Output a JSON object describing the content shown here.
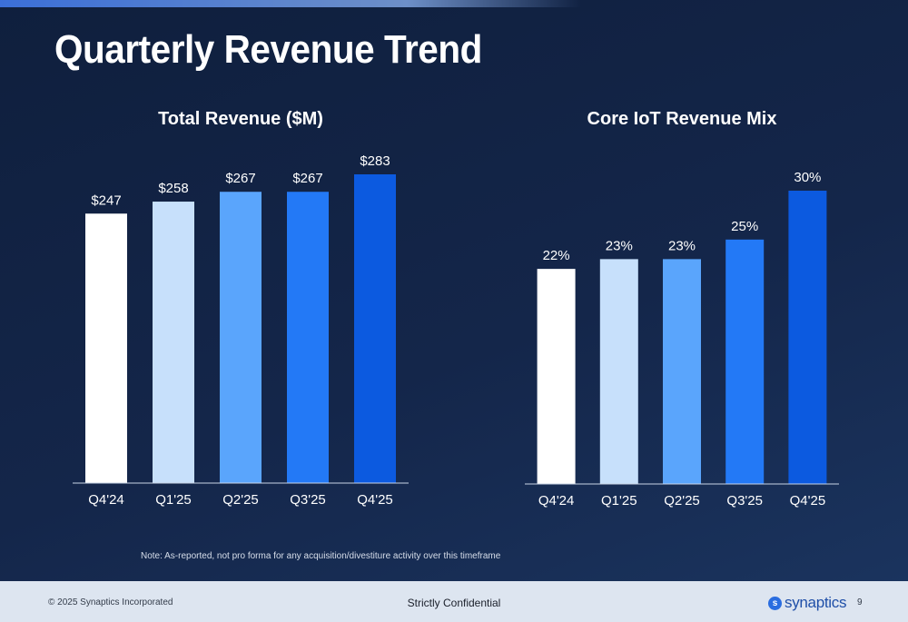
{
  "slide": {
    "title": "Quarterly Revenue Trend",
    "note": "Note: As-reported, not pro forma for any acquisition/divestiture activity over this timeframe"
  },
  "footer": {
    "copyright": "© 2025 Synaptics Incorporated",
    "confidential": "Strictly Confidential",
    "logo_text": "synaptics",
    "logo_mark_icon": "synaptics-logo-icon",
    "page_number": "9"
  },
  "colors": {
    "background": "#13254a",
    "bar_colors": [
      "#ffffff",
      "#c7e0fb",
      "#5aa5fc",
      "#2379f6",
      "#0c5ae0"
    ]
  },
  "chart_data": [
    {
      "type": "bar",
      "title": "Total Revenue ($M)",
      "categories": [
        "Q4'24",
        "Q1'25",
        "Q2'25",
        "Q3'25",
        "Q4'25"
      ],
      "values": [
        247,
        258,
        267,
        267,
        283
      ],
      "data_labels": [
        "$247",
        "$258",
        "$267",
        "$267",
        "$283"
      ],
      "ylim": [
        0,
        290
      ],
      "grid": false,
      "legend": "none"
    },
    {
      "type": "bar",
      "title": "Core IoT Revenue Mix",
      "categories": [
        "Q4'24",
        "Q1'25",
        "Q2'25",
        "Q3'25",
        "Q4'25"
      ],
      "values": [
        22,
        23,
        23,
        25,
        30
      ],
      "data_labels": [
        "22%",
        "23%",
        "23%",
        "25%",
        "30%"
      ],
      "ylim": [
        0,
        32
      ],
      "grid": false,
      "legend": "none"
    }
  ]
}
